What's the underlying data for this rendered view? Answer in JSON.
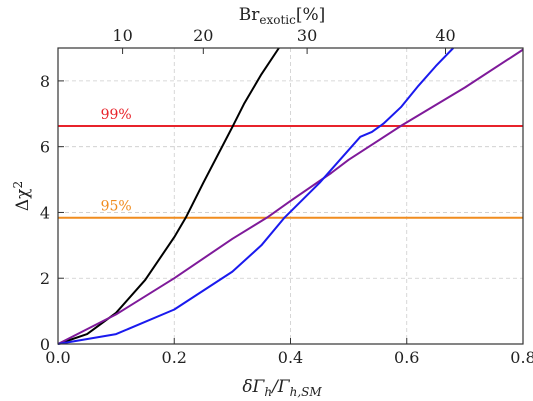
{
  "chart_data": {
    "type": "line",
    "title": "",
    "xlabel": "δΓ_h/Γ_h,SM",
    "ylabel": "Δχ²",
    "top_axis_label": "Br_exotic[%]",
    "xlim": [
      0.0,
      0.8
    ],
    "ylim": [
      0,
      9
    ],
    "x_ticks": [
      0.0,
      0.2,
      0.4,
      0.6,
      0.8
    ],
    "x_tick_labels": [
      "0.0",
      "0.2",
      "0.4",
      "0.6",
      "0.8"
    ],
    "y_ticks": [
      0,
      2,
      4,
      6,
      8
    ],
    "y_tick_labels": [
      "0",
      "2",
      "4",
      "6",
      "8"
    ],
    "top_ticks": [
      10,
      20,
      30,
      40
    ],
    "top_tick_labels": [
      "10",
      "20",
      "30",
      "40"
    ],
    "grid": true,
    "legend": "none",
    "horizontal_lines": [
      {
        "label": "99%",
        "y": 6.63,
        "x_range": [
          0.0,
          0.8
        ],
        "color": "#e8232b"
      },
      {
        "label": "95%",
        "y": 3.84,
        "x_range": [
          0.0,
          0.8
        ],
        "color": "#f08c1e"
      }
    ],
    "series": [
      {
        "color": "#000000",
        "x": [
          0.0,
          0.05,
          0.1,
          0.15,
          0.2,
          0.22,
          0.25,
          0.3,
          0.32,
          0.35,
          0.38
        ],
        "y": [
          0.0,
          0.3,
          0.95,
          1.95,
          3.25,
          3.85,
          4.9,
          6.6,
          7.3,
          8.2,
          9.0
        ]
      },
      {
        "color": "#7f1a9a",
        "x": [
          0.0,
          0.1,
          0.2,
          0.3,
          0.36,
          0.4,
          0.47,
          0.5,
          0.59,
          0.7,
          0.8
        ],
        "y": [
          0.0,
          0.9,
          2.0,
          3.2,
          3.85,
          4.35,
          5.2,
          5.6,
          6.63,
          7.8,
          8.95
        ]
      },
      {
        "color": "#1a1aee",
        "x": [
          0.0,
          0.1,
          0.2,
          0.3,
          0.35,
          0.39,
          0.45,
          0.52,
          0.54,
          0.56,
          0.59,
          0.62,
          0.65,
          0.68
        ],
        "y": [
          0.0,
          0.3,
          1.05,
          2.2,
          3.0,
          3.85,
          4.9,
          6.3,
          6.45,
          6.7,
          7.2,
          7.85,
          8.45,
          9.0
        ]
      }
    ]
  }
}
